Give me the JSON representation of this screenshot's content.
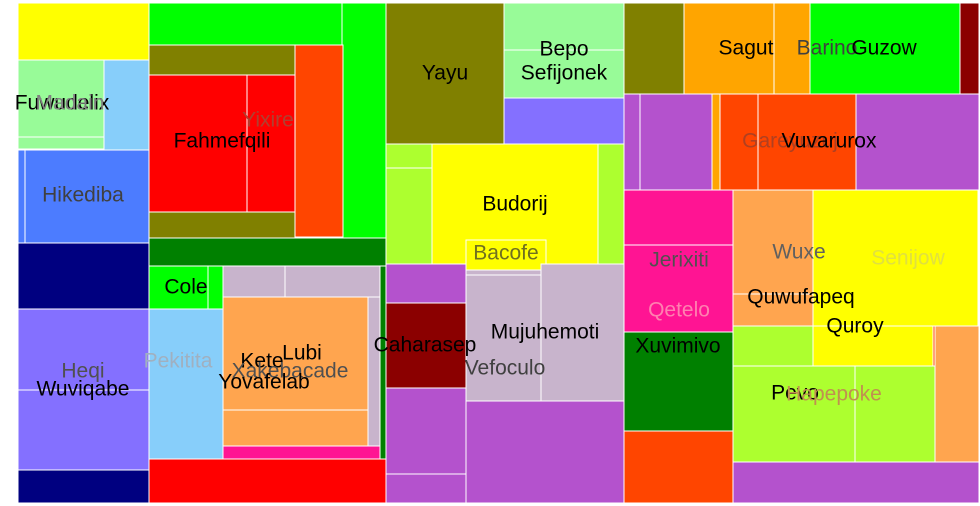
{
  "chart_data": {
    "type": "treemap",
    "title": "",
    "groups": [
      {
        "cells": [
          {
            "label": "",
            "color": "#ffff00"
          },
          {
            "label": "Fuwudelix",
            "color": "#98fb98",
            "text_color": "#000000"
          },
          {
            "label": "Madain",
            "color": "#87cefa",
            "text_color": "#808080"
          },
          {
            "label": "Hikediba",
            "color": "#4c7cff",
            "text_color": "#404040"
          },
          {
            "label": "",
            "color": "#000080"
          },
          {
            "label": "Heqi",
            "color": "#8470ff",
            "text_color": "#505050"
          },
          {
            "label": "Wuviqabe",
            "color": "#8470ff",
            "text_color": "#000000"
          },
          {
            "label": "",
            "color": "#000080"
          }
        ]
      },
      {
        "cells": [
          {
            "label": "",
            "color": "#00ff00"
          },
          {
            "label": "",
            "color": "#808000"
          },
          {
            "label": "Yixire",
            "color": "#ff0000",
            "text_color": "#b04030"
          },
          {
            "label": "Fahmefqili",
            "color": "#ff0000",
            "text_color": "#000000"
          },
          {
            "label": "",
            "color": "#ff4500"
          },
          {
            "label": "",
            "color": "#008000"
          },
          {
            "label": "Cole",
            "color": "#00ff00",
            "text_color": "#000000"
          },
          {
            "label": "Pekitita",
            "color": "#87cefa",
            "text_color": "#a0b0c0"
          },
          {
            "label": "Lubi",
            "color": "#ffa54f",
            "text_color": "#000000"
          },
          {
            "label": "Kete",
            "color": "#ffa54f",
            "text_color": "#000000"
          },
          {
            "label": "Xakebacade",
            "color": "#ffa54f",
            "text_color": "#505050"
          },
          {
            "label": "Yovafelab",
            "color": "#ffa54f",
            "text_color": "#000000"
          },
          {
            "label": "",
            "color": "#ff0000"
          }
        ]
      },
      {
        "cells": [
          {
            "label": "Yayu",
            "color": "#808000",
            "text_color": "#000000"
          },
          {
            "label": "Bepo",
            "color": "#98fb98",
            "text_color": "#000000"
          },
          {
            "label": "Sefijonek",
            "color": "#98fb98",
            "text_color": "#000000"
          },
          {
            "label": "Budorij",
            "color": "#ffff00",
            "text_color": "#000000"
          },
          {
            "label": "Bacofe",
            "color": "#ffff00",
            "text_color": "#707020"
          },
          {
            "label": "Caharasep",
            "color": "#8b0000",
            "text_color": "#000000"
          },
          {
            "label": "Mujuhemoti",
            "color": "#c8b4cc",
            "text_color": "#000000"
          },
          {
            "label": "Vefoculo",
            "color": "#c8b4cc",
            "text_color": "#404040"
          }
        ]
      },
      {
        "cells": [
          {
            "label": "Sagut",
            "color": "#ffa500",
            "text_color": "#000000"
          },
          {
            "label": "Barino",
            "color": "#ffa500",
            "text_color": "#404040"
          },
          {
            "label": "Guzow",
            "color": "#00ff00",
            "text_color": "#000000"
          },
          {
            "label": "Gareyuzuj",
            "color": "#ff4500",
            "text_color": "#b04020"
          },
          {
            "label": "Vuvarurox",
            "color": "#ff4500",
            "text_color": "#000000"
          },
          {
            "label": "Jerixiti",
            "color": "#ff1493",
            "text_color": "#505050"
          },
          {
            "label": "Qetelo",
            "color": "#ff1493",
            "text_color": "#ff80b0"
          },
          {
            "label": "Xuvimivo",
            "color": "#008000",
            "text_color": "#000000"
          },
          {
            "label": "Wuxe",
            "color": "#ffa54f",
            "text_color": "#606060"
          },
          {
            "label": "Quwufapeq",
            "color": "#ffa54f",
            "text_color": "#000000"
          },
          {
            "label": "Senijow",
            "color": "#ffff00",
            "text_color": "#e0e040"
          },
          {
            "label": "Quroy",
            "color": "#ffff00",
            "text_color": "#000000"
          },
          {
            "label": "Pevo",
            "color": "#adff2f",
            "text_color": "#000000"
          },
          {
            "label": "Hapepoke",
            "color": "#adff2f",
            "text_color": "#c09050"
          }
        ]
      }
    ]
  }
}
